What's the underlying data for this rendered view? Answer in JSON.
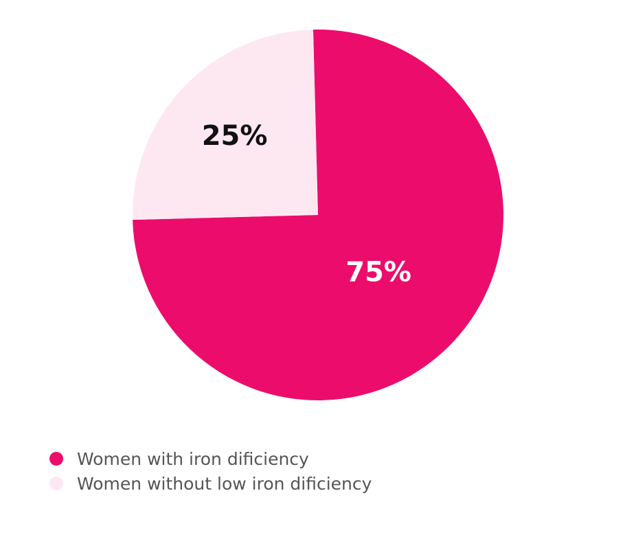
{
  "chart_data": {
    "type": "pie",
    "slices": [
      {
        "label": "Women with iron dificiency",
        "value": 75,
        "display": "75%",
        "color": "#EC0C6C",
        "label_color": "#ffffff"
      },
      {
        "label": "Women without low iron dificiency",
        "value": 25,
        "display": "25%",
        "color": "#FDE8F2",
        "label_color": "#111111"
      }
    ],
    "legend_position": "bottom-left"
  }
}
